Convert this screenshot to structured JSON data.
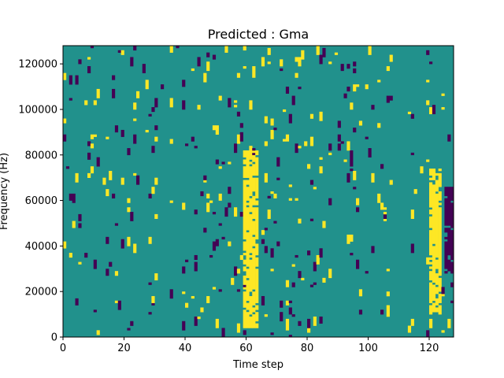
{
  "chart_data": {
    "type": "heatmap",
    "title": "Predicted : Gma",
    "xlabel": "Time step",
    "ylabel": "Frequency (Hz)",
    "xlim": [
      0,
      128
    ],
    "ylim": [
      0,
      128000
    ],
    "x_ticks": [
      0,
      20,
      40,
      60,
      80,
      100,
      120
    ],
    "y_ticks": [
      0,
      20000,
      40000,
      60000,
      80000,
      100000,
      120000
    ],
    "grid": false,
    "legend": "none",
    "colors": {
      "low": "#440154",
      "mid": "#21918c",
      "high": "#fde725"
    },
    "value_levels": [
      0,
      1,
      2
    ],
    "n_time_steps": 128,
    "n_freq_bins": 128,
    "background_level": 1,
    "bright_bands": [
      {
        "x_range": [
          59,
          64
        ],
        "y_range": [
          4000,
          82000
        ],
        "level": 2
      },
      {
        "x_range": [
          120,
          124
        ],
        "y_range": [
          10000,
          74000
        ],
        "level": 2
      }
    ],
    "dark_bands": [
      {
        "x_range": [
          125,
          128
        ],
        "y_range": [
          28000,
          66000
        ],
        "level": 0
      }
    ]
  }
}
